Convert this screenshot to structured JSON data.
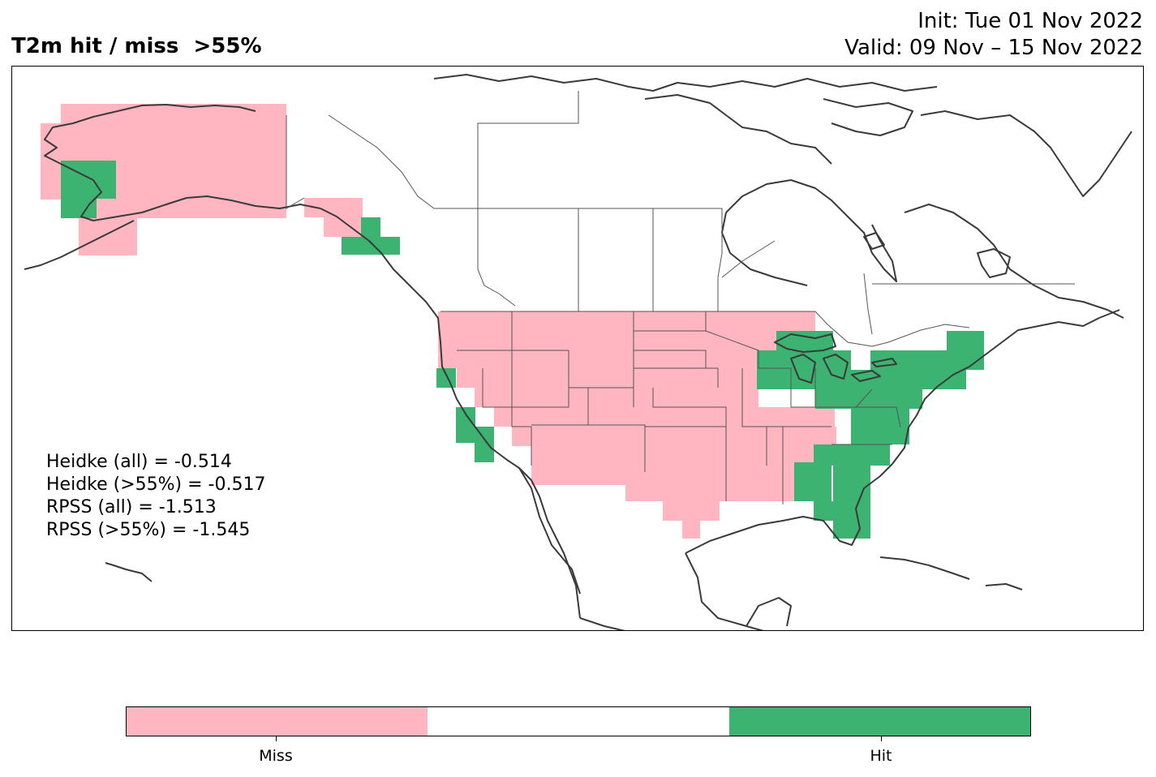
{
  "title": "T2m hit / miss  >55%",
  "init_text": "Init: Tue 01 Nov 2022",
  "valid_text": "Valid: 09 Nov – 15 Nov 2022",
  "scores": [
    "Heidke (all) = -0.514",
    "Heidke (>55%) = -0.517",
    "RPSS (all) = -1.513",
    "RPSS (>55%) = -1.545"
  ],
  "colorbar": {
    "labels": [
      "Miss",
      "Hit"
    ],
    "colors": {
      "miss": "#ffb6c1",
      "neutral": "#ffffff",
      "hit": "#3cb371"
    }
  },
  "map_colors": {
    "land_line": "#3a3a3a",
    "border_line": "#555555"
  }
}
